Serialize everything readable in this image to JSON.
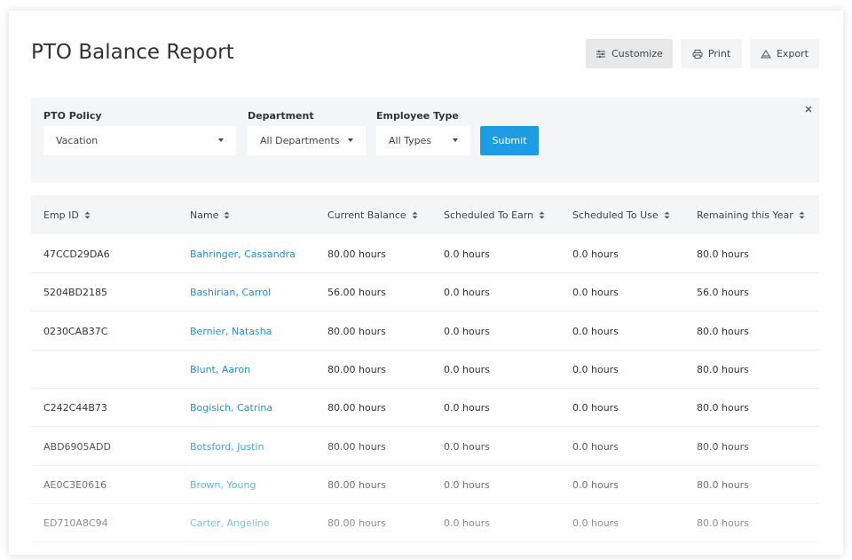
{
  "header": {
    "title": "PTO Balance Report",
    "buttons": [
      "Customize",
      "Print",
      "Export"
    ]
  },
  "filters": [
    {
      "label": "PTO Policy",
      "value": "Vacation"
    },
    {
      "label": "Department",
      "value": "All Departments"
    },
    {
      "label": "Employee Type",
      "value": "All Types"
    }
  ],
  "submit": "Submit",
  "table": {
    "columns": [
      "Emp ID",
      "Name",
      "Current Balance",
      "Scheduled To Earn",
      "Scheduled To Use",
      "Remaining this Year"
    ],
    "rows": [
      [
        "47CCD29DA6",
        "Bahringer, Cassandra",
        "80.00 hours",
        "0.0 hours",
        "0.0 hours",
        "80.0 hours"
      ],
      [
        "5204BD2185",
        "Bashirian, Carrol",
        "56.00 hours",
        "0.0 hours",
        "0.0 hours",
        "56.0 hours"
      ],
      [
        "0230CAB37C",
        "Bernier, Natasha",
        "80.00 hours",
        "0.0 hours",
        "0.0 hours",
        "80.0 hours"
      ],
      [
        null,
        "Blunt, Aaron",
        "80.00 hours",
        "0.0 hours",
        "0.0 hours",
        "80.0 hours"
      ],
      [
        "C242C44B73",
        "Bogisich, Catrina",
        "80.00 hours",
        "0.0 hours",
        "0.0 hours",
        "80.0 hours"
      ],
      [
        "ABD6905ADD",
        "Botsford, Justin",
        "80.00 hours",
        "0.0 hours",
        "0.0 hours",
        "80.0 hours"
      ],
      [
        "AE0C3E0616",
        "Brown, Young",
        "80.00 hours",
        "0.0 hours",
        "0.0 hours",
        "80.0 hours"
      ],
      [
        "ED710A8C94",
        "Carter, Angeline",
        "80.00 hours",
        "0.0 hours",
        "0.0 hours",
        "80.0 hours"
      ]
    ]
  }
}
